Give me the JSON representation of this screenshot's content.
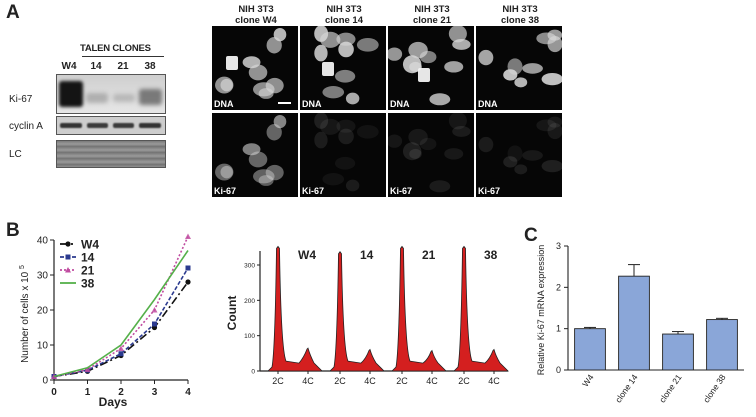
{
  "panels": {
    "a": "A",
    "b": "B",
    "c": "C"
  },
  "blot": {
    "header": "TALEN CLONES",
    "columns": [
      "W4",
      "14",
      "21",
      "38"
    ],
    "rows": [
      "Ki-67",
      "cyclin A",
      "LC"
    ],
    "ki67_band_intensity": [
      1.0,
      0.2,
      0.15,
      0.45
    ]
  },
  "microscopy": {
    "titles": [
      "NIH 3T3\nclone W4",
      "NIH 3T3\nclone 14",
      "NIH 3T3\nclone 21",
      "NIH 3T3\nclone 38"
    ],
    "stain_top": "DNA",
    "stain_bottom": "Ki-67"
  },
  "chart_data": [
    {
      "type": "line",
      "x": [
        0,
        1,
        2,
        3,
        4
      ],
      "xlabel": "Days",
      "ylabel": "Number of cells x 10 5",
      "ylim": [
        0,
        40
      ],
      "yticks": [
        0,
        10,
        20,
        30,
        40
      ],
      "legend": "top-left",
      "series": [
        {
          "name": "W4",
          "values": [
            1,
            2.5,
            7,
            15,
            28
          ],
          "color": "#111111",
          "marker": "circle",
          "dash": "8,3,2,3"
        },
        {
          "name": "14",
          "values": [
            1,
            2.8,
            7.5,
            16,
            32
          ],
          "color": "#2b3a8f",
          "marker": "square",
          "dash": "4,2"
        },
        {
          "name": "21",
          "values": [
            1,
            3,
            9,
            20,
            41
          ],
          "color": "#c04ca0",
          "marker": "triangle",
          "dash": "2,2"
        },
        {
          "name": "38",
          "values": [
            1,
            3.5,
            10,
            23,
            37
          ],
          "color": "#55b04a",
          "marker": "none",
          "dash": ""
        }
      ]
    },
    {
      "type": "area",
      "ylabel": "Count",
      "ylim": [
        0,
        300
      ],
      "yticks": [
        0,
        100,
        200,
        300
      ],
      "xticks": [
        "2C",
        "4C"
      ],
      "series": [
        {
          "name": "W4",
          "g1": 340,
          "g2": 62
        },
        {
          "name": "14",
          "g1": 315,
          "g2": 58
        },
        {
          "name": "21",
          "g1": 330,
          "g2": 55
        },
        {
          "name": "38",
          "g1": 330,
          "g2": 58
        }
      ]
    },
    {
      "type": "bar",
      "categories": [
        "W4",
        "clone 14",
        "clone 21",
        "clone 38"
      ],
      "values": [
        1.0,
        2.27,
        0.87,
        1.22
      ],
      "errors": [
        0.03,
        0.28,
        0.06,
        0.03
      ],
      "ylabel": "Relative Ki-67 mRNA expression",
      "ylim": [
        0,
        3
      ],
      "yticks": [
        0,
        1,
        2,
        3
      ],
      "color": "#8aa6d8"
    }
  ]
}
